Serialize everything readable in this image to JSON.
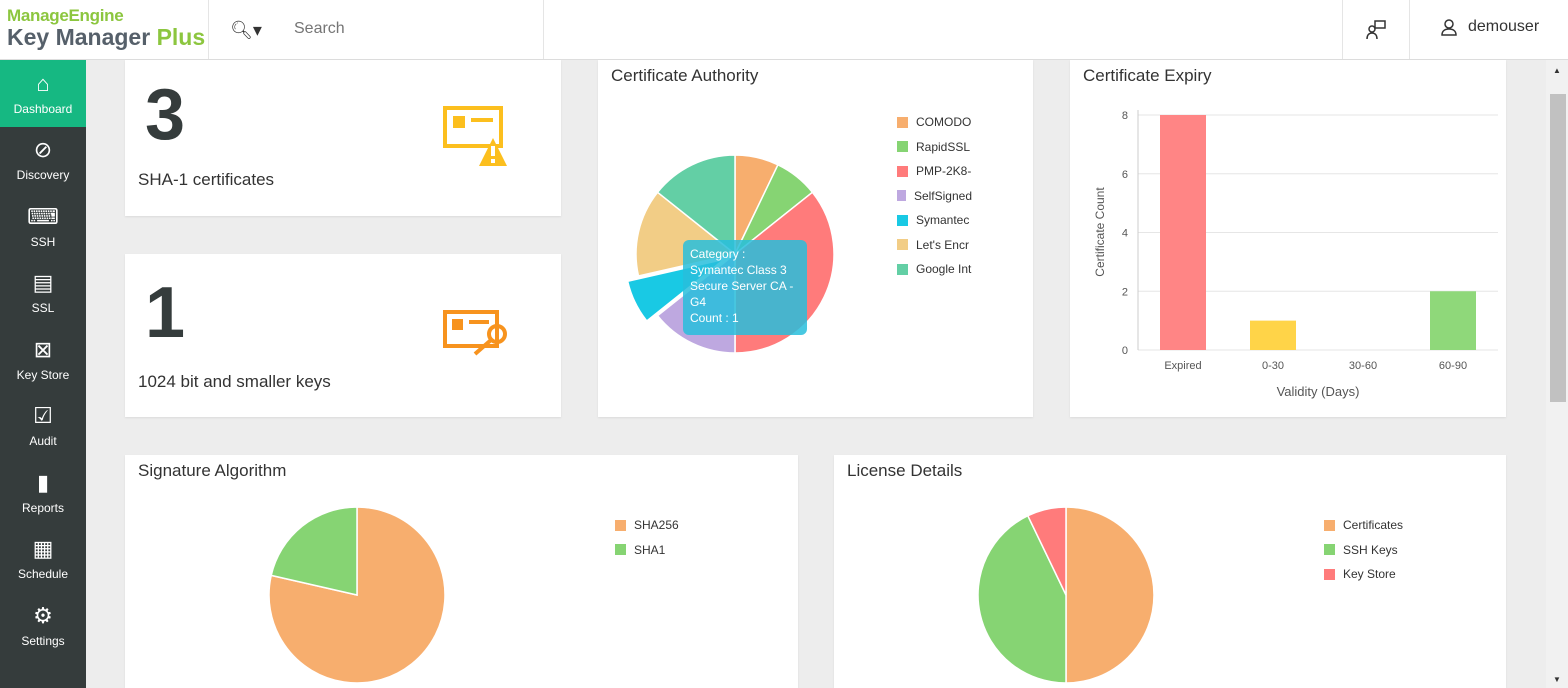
{
  "header": {
    "brand_top": "ManageEngine",
    "brand_main": "Key Manager",
    "brand_plus": "Plus",
    "search_placeholder": "Search",
    "user": "demouser"
  },
  "sidebar": {
    "items": [
      {
        "label": "Dashboard",
        "icon": "home-icon",
        "active": true
      },
      {
        "label": "Discovery",
        "icon": "compass-icon"
      },
      {
        "label": "SSH",
        "icon": "ssh-icon"
      },
      {
        "label": "SSL",
        "icon": "ssl-icon"
      },
      {
        "label": "Key Store",
        "icon": "keystore-icon"
      },
      {
        "label": "Audit",
        "icon": "audit-icon"
      },
      {
        "label": "Reports",
        "icon": "reports-icon"
      },
      {
        "label": "Schedule",
        "icon": "calendar-icon"
      },
      {
        "label": "Settings",
        "icon": "gear-icon"
      }
    ]
  },
  "stats": [
    {
      "value": "3",
      "label": "SHA-1 certificates"
    },
    {
      "value": "1",
      "label": "1024 bit and smaller keys"
    }
  ],
  "chart_data": [
    {
      "type": "pie",
      "title": "Certificate Authority",
      "categories": [
        "COMODO",
        "RapidSSL",
        "PMP-2K8-",
        "SelfSigned",
        "Symantec",
        "Let's Encr",
        "Google Int"
      ],
      "values": [
        1,
        1,
        5,
        2,
        1,
        2,
        2
      ],
      "colors": [
        "#f7ae6e",
        "#86d473",
        "#ff7b7b",
        "#bea8e0",
        "#19c9e4",
        "#f2cd86",
        "#63cfa5"
      ],
      "tooltip": {
        "line1": "Category :",
        "line2": "Symantec Class 3",
        "line3": "Secure Server CA -",
        "line4": "G4",
        "line5": "Count : 1"
      }
    },
    {
      "type": "bar",
      "title": "Certificate Expiry",
      "categories": [
        "Expired",
        "0-30",
        "30-60",
        "60-90"
      ],
      "values": [
        8,
        1,
        0,
        2
      ],
      "colors": [
        "#ff8585",
        "#ffd448",
        "#86d473",
        "#8fd87a"
      ],
      "xlabel": "Validity (Days)",
      "ylabel": "Certificate Count",
      "ylim": [
        0,
        8
      ],
      "yticks": [
        "0",
        "2",
        "4",
        "6",
        "8"
      ]
    },
    {
      "type": "pie",
      "title": "Signature Algorithm",
      "categories": [
        "SHA256",
        "SHA1"
      ],
      "values": [
        11,
        3
      ],
      "colors": [
        "#f7ae6e",
        "#86d473"
      ]
    },
    {
      "type": "pie",
      "title": "License Details",
      "categories": [
        "Certificates",
        "SSH Keys",
        "Key Store"
      ],
      "values": [
        14,
        12,
        2
      ],
      "colors": [
        "#f7ae6e",
        "#86d473",
        "#ff7b7b"
      ]
    }
  ]
}
